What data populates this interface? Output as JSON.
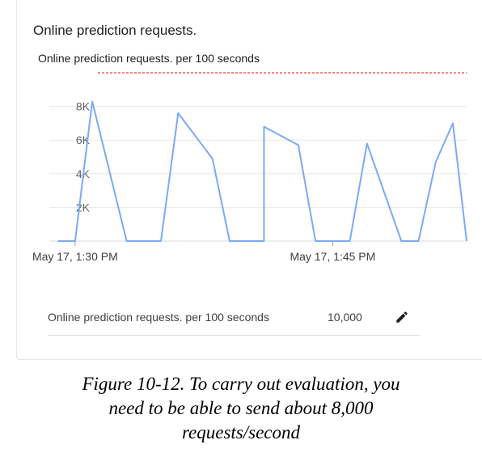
{
  "panel": {
    "title": "Online prediction requests.",
    "quota_label": "Online prediction requests. per 100 seconds",
    "quota_value": "10,000",
    "edit_icon": "pencil-icon"
  },
  "chart_data": {
    "type": "line",
    "title": "Online prediction requests. per 100 seconds",
    "xlabel": "",
    "ylabel": "",
    "x_tick_labels": [
      "May 17, 1:30 PM",
      "May 17, 1:45 PM"
    ],
    "y_tick_labels": [
      "2K",
      "4K",
      "6K",
      "8K"
    ],
    "y_ticks": [
      2000,
      4000,
      6000,
      8000
    ],
    "ylim": [
      0,
      10000
    ],
    "x_tick_positions_min": [
      0,
      15
    ],
    "xlim_min": [
      -1.5,
      22.8
    ],
    "quota_line": 10000,
    "grid": true,
    "colors": {
      "series": "#7baaf7",
      "quota": "#ea4335",
      "grid": "#e8e8e8"
    },
    "series": [
      {
        "x": [
          -1.0,
          0.0,
          1.0,
          3.0,
          5.0,
          6.0,
          8.0,
          9.0,
          11.0,
          11.0,
          13.0,
          14.0,
          16.0,
          17.0,
          17.0,
          19.0,
          20.0,
          21.0,
          22.0,
          22.8
        ],
        "y": [
          0,
          0,
          8300,
          0,
          0,
          7600,
          4900,
          0,
          0,
          6800,
          5700,
          0,
          0,
          5800,
          5800,
          0,
          0,
          4700,
          7000,
          0
        ]
      }
    ]
  },
  "caption": {
    "line1": "Figure 10-12. To carry out evaluation, you",
    "line2": "need to be able to send about 8,000",
    "line3": "requests/second"
  }
}
